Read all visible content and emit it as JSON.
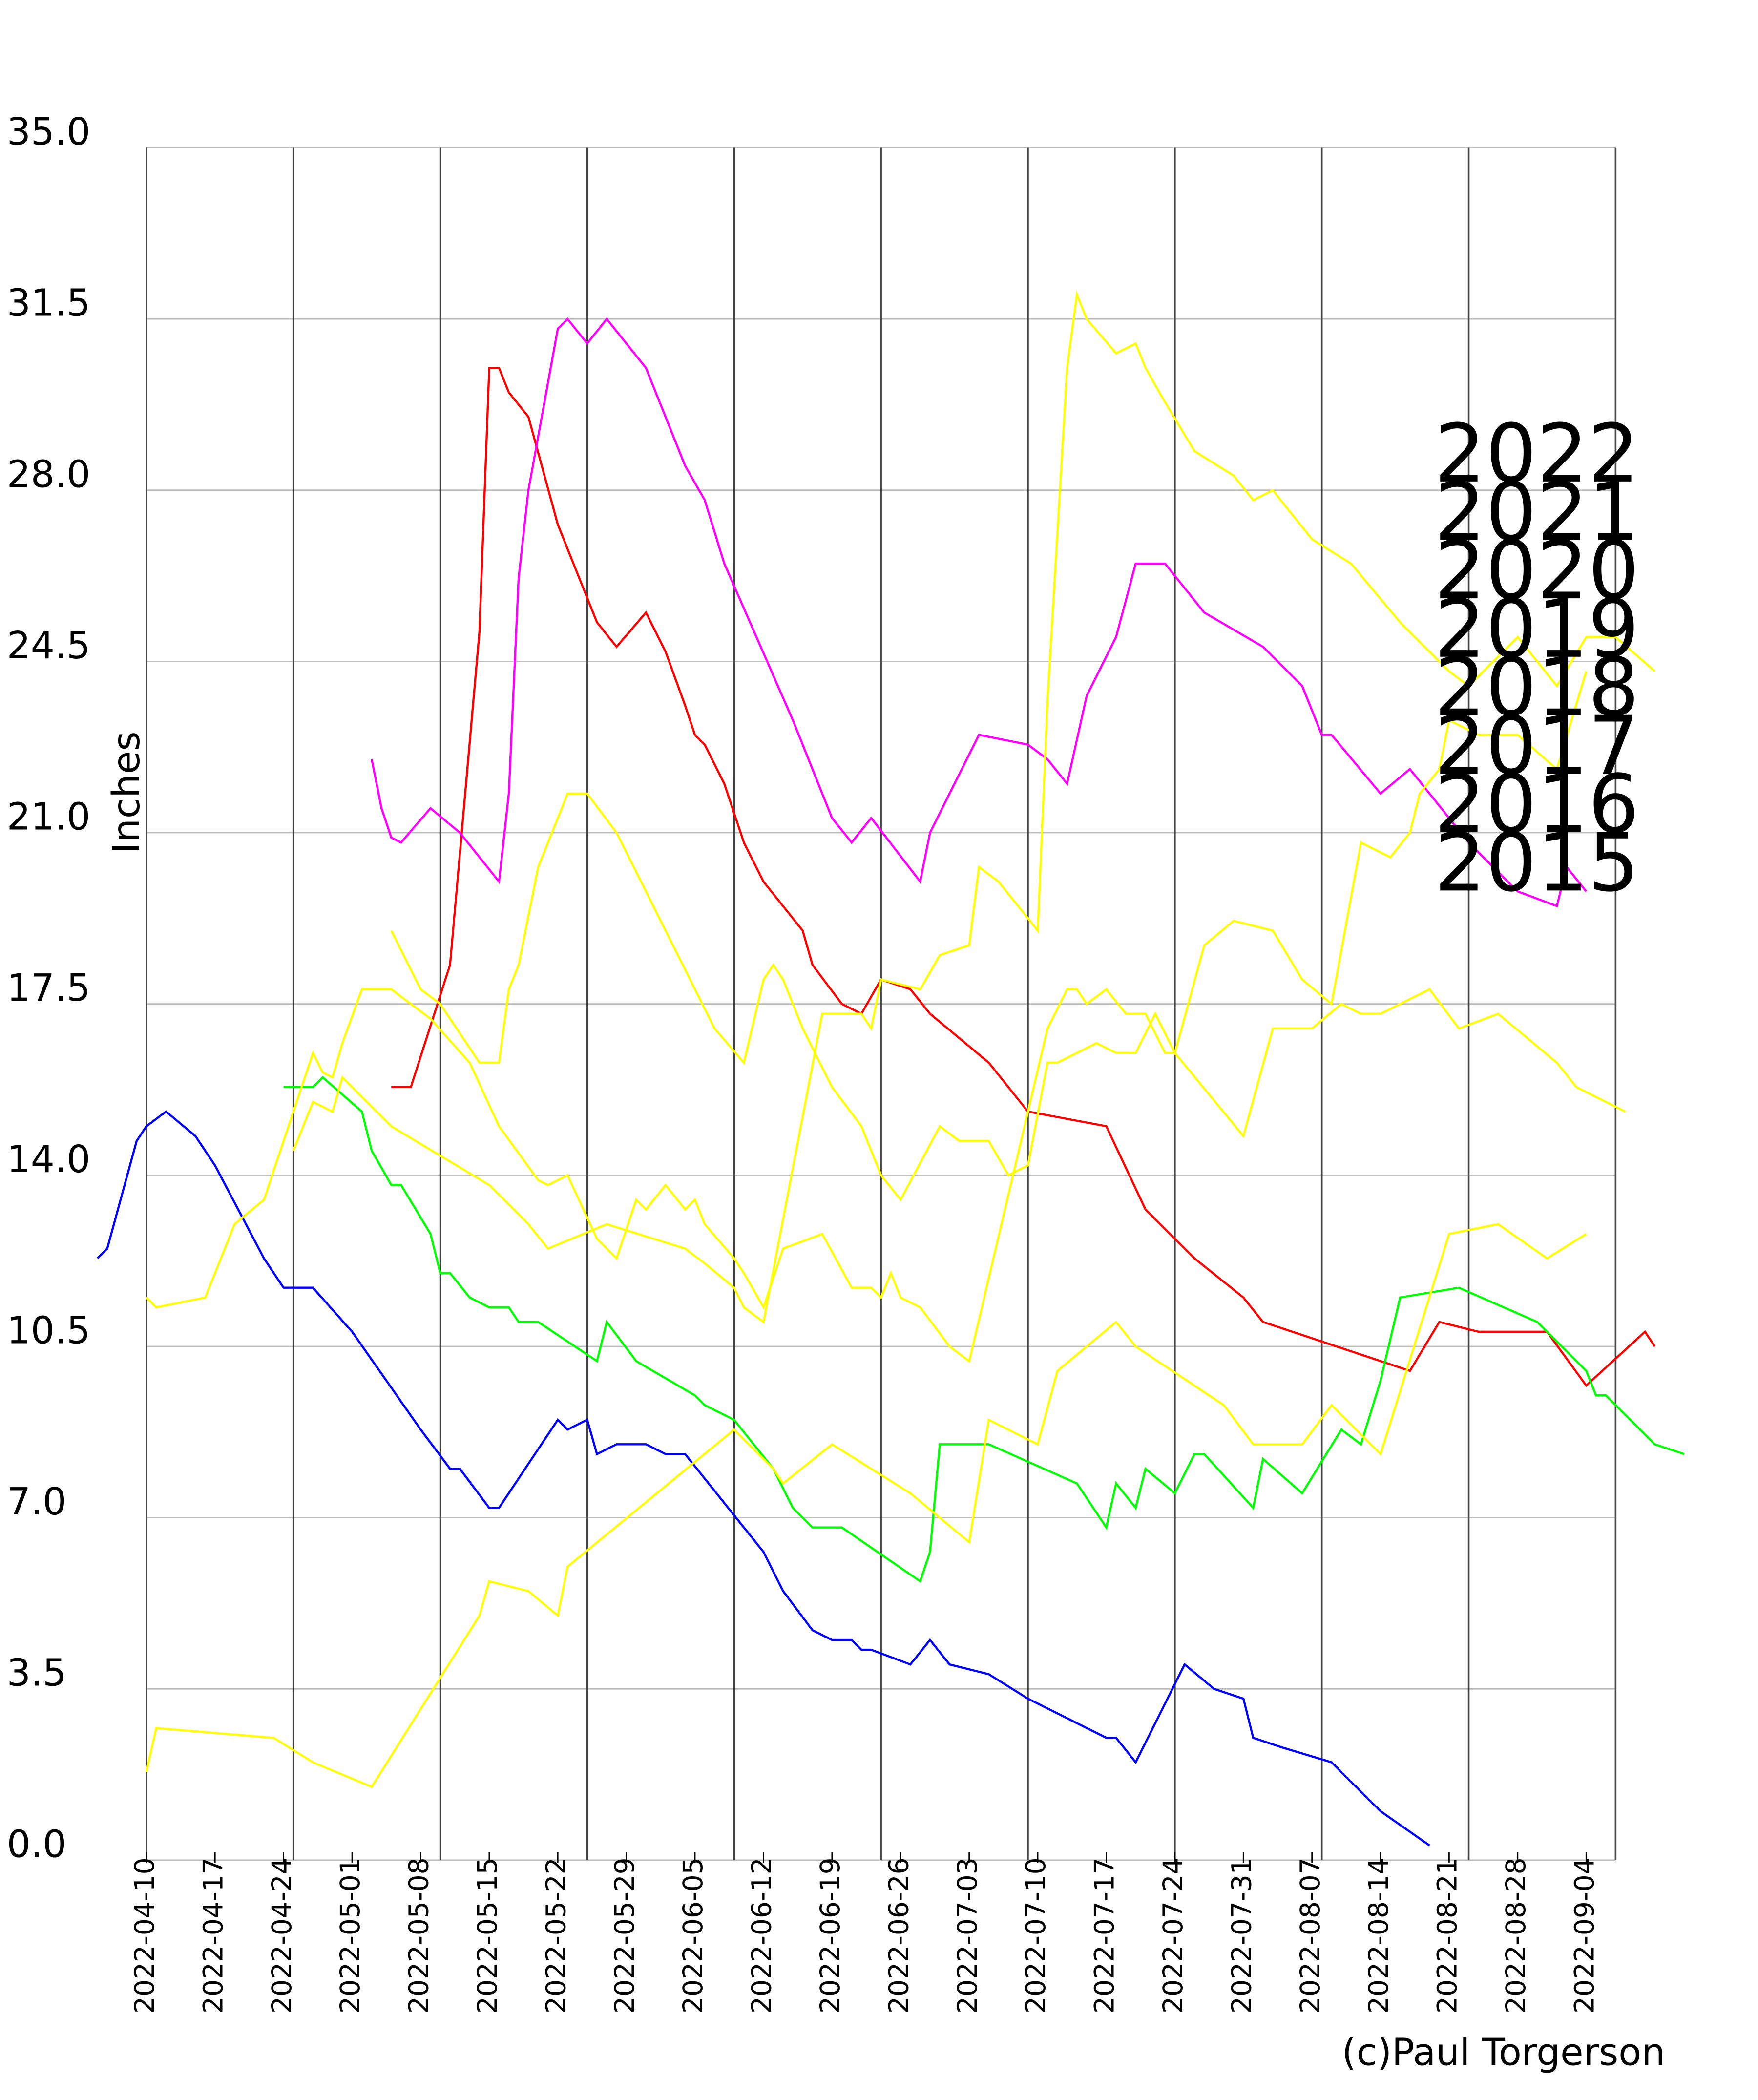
{
  "chart_data": {
    "type": "line",
    "y_label": "Inches",
    "credit": "(c)Paul Torgerson",
    "ylim": [
      0,
      35
    ],
    "yticks": [
      {
        "value": 0,
        "label": "0.0"
      },
      3.5,
      {
        "value": 7,
        "label": "7.0"
      },
      10.5,
      {
        "value": 14,
        "label": "14.0"
      },
      17.5,
      {
        "value": 21,
        "label": "21.0"
      },
      24.5,
      {
        "value": 28,
        "label": "28.0"
      },
      31.5,
      {
        "value": 35,
        "label": "35.0"
      }
    ],
    "xlim": [
      "2022-04-10",
      "2022-09-07"
    ],
    "xticks": [
      "2022-04-10",
      "2022-04-17",
      "2022-04-24",
      "2022-05-01",
      "2022-05-08",
      "2022-05-15",
      "2022-05-22",
      "2022-05-29",
      "2022-06-05",
      "2022-06-12",
      "2022-06-19",
      "2022-06-26",
      "2022-07-03",
      "2022-07-10",
      "2022-07-17",
      "2022-07-24",
      "2022-07-31",
      "2022-08-07",
      "2022-08-14",
      "2022-08-21",
      "2022-08-28",
      "2022-09-04"
    ],
    "xgrid_lines": [
      "2022-04-10",
      "2022-04-25",
      "2022-05-10",
      "2022-05-25",
      "2022-06-09",
      "2022-06-24",
      "2022-07-09",
      "2022-07-24",
      "2022-08-08",
      "2022-08-23",
      "2022-09-07"
    ],
    "grid": true,
    "series": [
      {
        "name": "2022",
        "color": "#ff0000",
        "x": [
          "2022-05-05",
          "2022-05-07",
          "2022-05-11",
          "2022-05-14",
          "2022-05-15",
          "2022-05-16",
          "2022-05-17",
          "2022-05-19",
          "2022-05-22",
          "2022-05-26",
          "2022-05-28",
          "2022-05-31",
          "2022-06-02",
          "2022-06-04",
          "2022-06-05",
          "2022-06-06",
          "2022-06-08",
          "2022-06-10",
          "2022-06-12",
          "2022-06-16",
          "2022-06-17",
          "2022-06-20",
          "2022-06-22",
          "2022-06-24",
          "2022-06-27",
          "2022-06-29",
          "2022-07-05",
          "2022-07-09",
          "2022-07-17",
          "2022-07-21",
          "2022-07-26",
          "2022-07-31",
          "2022-08-02",
          "2022-08-17",
          "2022-08-20",
          "2022-08-24",
          "2022-08-31",
          "2022-09-04",
          "2022-09-10",
          "2022-09-11"
        ],
        "values": [
          15.8,
          15.8,
          18.3,
          25.1,
          30.5,
          30.5,
          30.0,
          29.5,
          27.3,
          25.3,
          24.8,
          25.5,
          24.7,
          23.6,
          23.0,
          22.8,
          22.0,
          20.8,
          20.0,
          19.0,
          18.3,
          17.5,
          17.3,
          18.0,
          17.8,
          17.3,
          16.3,
          15.3,
          15.0,
          13.3,
          12.3,
          11.5,
          11.0,
          10.0,
          11.0,
          10.8,
          10.8,
          9.7,
          10.8,
          10.5
        ]
      },
      {
        "name": "2021",
        "color": "#0000ff",
        "x": [
          "2022-04-05",
          "2022-04-06",
          "2022-04-09",
          "2022-04-10",
          "2022-04-12",
          "2022-04-15",
          "2022-04-17",
          "2022-04-22",
          "2022-04-24",
          "2022-04-27",
          "2022-05-01",
          "2022-05-08",
          "2022-05-11",
          "2022-05-12",
          "2022-05-15",
          "2022-05-16",
          "2022-05-22",
          "2022-05-23",
          "2022-05-25",
          "2022-05-26",
          "2022-05-28",
          "2022-05-31",
          "2022-06-02",
          "2022-06-04",
          "2022-06-12",
          "2022-06-14",
          "2022-06-17",
          "2022-06-19",
          "2022-06-21",
          "2022-06-22",
          "2022-06-23",
          "2022-06-27",
          "2022-06-29",
          "2022-07-01",
          "2022-07-05",
          "2022-07-09",
          "2022-07-17",
          "2022-07-18",
          "2022-07-20",
          "2022-07-25",
          "2022-07-28",
          "2022-07-31",
          "2022-08-01",
          "2022-08-04",
          "2022-08-09",
          "2022-08-14",
          "2022-08-19"
        ],
        "values": [
          12.3,
          12.5,
          14.7,
          15.0,
          15.3,
          14.8,
          14.2,
          12.3,
          11.7,
          11.7,
          10.8,
          8.8,
          8.0,
          8.0,
          7.2,
          7.2,
          9.0,
          8.8,
          9.0,
          8.3,
          8.5,
          8.5,
          8.3,
          8.3,
          6.3,
          5.5,
          4.7,
          4.5,
          4.5,
          4.3,
          4.3,
          4.0,
          4.5,
          4.0,
          3.8,
          3.3,
          2.5,
          2.5,
          2.0,
          4.0,
          3.5,
          3.3,
          2.5,
          2.3,
          2.0,
          1.0,
          0.3
        ]
      },
      {
        "name": "2020",
        "color": "#00ff00",
        "x": [
          "2022-04-24",
          "2022-04-27",
          "2022-04-28",
          "2022-05-02",
          "2022-05-03",
          "2022-05-05",
          "2022-05-06",
          "2022-05-09",
          "2022-05-10",
          "2022-05-11",
          "2022-05-13",
          "2022-05-15",
          "2022-05-17",
          "2022-05-18",
          "2022-05-20",
          "2022-05-26",
          "2022-05-27",
          "2022-05-30",
          "2022-06-05",
          "2022-06-06",
          "2022-06-09",
          "2022-06-13",
          "2022-06-15",
          "2022-06-17",
          "2022-06-20",
          "2022-06-28",
          "2022-06-29",
          "2022-06-30",
          "2022-07-05",
          "2022-07-14",
          "2022-07-17",
          "2022-07-18",
          "2022-07-20",
          "2022-07-21",
          "2022-07-24",
          "2022-07-26",
          "2022-07-27",
          "2022-08-01",
          "2022-08-02",
          "2022-08-06",
          "2022-08-10",
          "2022-08-12",
          "2022-08-14",
          "2022-08-16",
          "2022-08-22",
          "2022-08-30",
          "2022-09-04",
          "2022-09-05",
          "2022-09-06",
          "2022-09-11",
          "2022-09-14"
        ],
        "values": [
          15.8,
          15.8,
          16.0,
          15.3,
          14.5,
          13.8,
          13.8,
          12.8,
          12.0,
          12.0,
          11.5,
          11.3,
          11.3,
          11.0,
          11.0,
          10.2,
          11.0,
          10.2,
          9.5,
          9.3,
          9.0,
          8.0,
          7.2,
          6.8,
          6.8,
          5.7,
          6.3,
          8.5,
          8.5,
          7.7,
          6.8,
          7.7,
          7.2,
          8.0,
          7.5,
          8.3,
          8.3,
          7.2,
          8.2,
          7.5,
          8.8,
          8.5,
          9.8,
          11.5,
          11.7,
          11.0,
          10.0,
          9.5,
          9.5,
          8.5,
          8.3
        ]
      },
      {
        "name": "2019",
        "color": "#ff00ff",
        "x": [
          "2022-05-03",
          "2022-05-04",
          "2022-05-05",
          "2022-05-06",
          "2022-05-09",
          "2022-05-12",
          "2022-05-16",
          "2022-05-17",
          "2022-05-18",
          "2022-05-19",
          "2022-05-22",
          "2022-05-23",
          "2022-05-25",
          "2022-05-27",
          "2022-05-31",
          "2022-06-04",
          "2022-06-06",
          "2022-06-08",
          "2022-06-15",
          "2022-06-19",
          "2022-06-21",
          "2022-06-23",
          "2022-06-28",
          "2022-06-29",
          "2022-07-04",
          "2022-07-09",
          "2022-07-11",
          "2022-07-13",
          "2022-07-15",
          "2022-07-18",
          "2022-07-20",
          "2022-07-23",
          "2022-07-27",
          "2022-08-02",
          "2022-08-06",
          "2022-08-08",
          "2022-08-09",
          "2022-08-14",
          "2022-08-17",
          "2022-08-23",
          "2022-08-28",
          "2022-09-01",
          "2022-09-02",
          "2022-09-04"
        ],
        "values": [
          22.5,
          21.5,
          20.9,
          20.8,
          21.5,
          21.0,
          20.0,
          21.8,
          26.2,
          28.0,
          31.3,
          31.5,
          31.0,
          31.5,
          30.5,
          28.5,
          27.8,
          26.5,
          23.3,
          21.3,
          20.8,
          21.3,
          20.0,
          21.0,
          23.0,
          22.8,
          22.5,
          22.0,
          23.8,
          25.0,
          26.5,
          26.5,
          25.5,
          24.8,
          24.0,
          23.0,
          23.0,
          21.8,
          22.3,
          20.8,
          19.8,
          19.5,
          20.3,
          19.8
        ]
      },
      {
        "name": "2018",
        "color": "#ffff00",
        "x": [
          "2022-05-05",
          "2022-05-08",
          "2022-05-10",
          "2022-05-14",
          "2022-05-16",
          "2022-05-17",
          "2022-05-18",
          "2022-05-20",
          "2022-05-23",
          "2022-05-25",
          "2022-05-28",
          "2022-05-31",
          "2022-06-02",
          "2022-06-05",
          "2022-06-07",
          "2022-06-10",
          "2022-06-12",
          "2022-06-13",
          "2022-06-14",
          "2022-06-16",
          "2022-06-19",
          "2022-06-22",
          "2022-06-24",
          "2022-06-26",
          "2022-06-30",
          "2022-07-02",
          "2022-07-05",
          "2022-07-07",
          "2022-07-09",
          "2022-07-11",
          "2022-07-12",
          "2022-07-14",
          "2022-07-16",
          "2022-07-18",
          "2022-07-20",
          "2022-07-22",
          "2022-07-24",
          "2022-07-27",
          "2022-07-30",
          "2022-08-03",
          "2022-08-06",
          "2022-08-09",
          "2022-08-12",
          "2022-08-15",
          "2022-08-17",
          "2022-08-18",
          "2022-08-20",
          "2022-08-21",
          "2022-08-24",
          "2022-08-28",
          "2022-09-01",
          "2022-09-04"
        ],
        "values": [
          19.0,
          17.8,
          17.5,
          16.3,
          16.3,
          17.8,
          18.3,
          20.3,
          21.8,
          21.8,
          21.0,
          19.8,
          19.0,
          17.8,
          17.0,
          16.3,
          18.0,
          18.3,
          18.0,
          17.0,
          15.8,
          15.0,
          14.0,
          13.5,
          15.0,
          14.7,
          14.7,
          14.0,
          14.2,
          16.3,
          16.3,
          16.5,
          16.7,
          16.5,
          16.5,
          17.3,
          16.5,
          18.7,
          19.2,
          19.0,
          18.0,
          17.5,
          20.8,
          20.5,
          21.0,
          21.8,
          22.3,
          23.3,
          23.0,
          23.0,
          22.3,
          24.3
        ]
      },
      {
        "name": "2017",
        "color": "#ffff00",
        "x": [
          "2022-04-10",
          "2022-04-11",
          "2022-04-16",
          "2022-04-19",
          "2022-04-22",
          "2022-04-27",
          "2022-04-28",
          "2022-04-29",
          "2022-04-30",
          "2022-05-02",
          "2022-05-05",
          "2022-05-09",
          "2022-05-13",
          "2022-05-16",
          "2022-05-20",
          "2022-05-21",
          "2022-05-23",
          "2022-05-26",
          "2022-05-28",
          "2022-05-30",
          "2022-05-31",
          "2022-06-02",
          "2022-06-04",
          "2022-06-05",
          "2022-06-06",
          "2022-06-09",
          "2022-06-10",
          "2022-06-12",
          "2022-06-14",
          "2022-06-18",
          "2022-06-21",
          "2022-06-23",
          "2022-06-24",
          "2022-06-25",
          "2022-06-26",
          "2022-06-28",
          "2022-07-01",
          "2022-07-03",
          "2022-07-11",
          "2022-07-13",
          "2022-07-14",
          "2022-07-15",
          "2022-07-17",
          "2022-07-19",
          "2022-07-21",
          "2022-07-23",
          "2022-07-24",
          "2022-07-31",
          "2022-08-03",
          "2022-08-07",
          "2022-08-10",
          "2022-08-12",
          "2022-08-14",
          "2022-08-19",
          "2022-08-22",
          "2022-08-26",
          "2022-09-01",
          "2022-09-03",
          "2022-09-08"
        ],
        "values": [
          11.5,
          11.3,
          11.5,
          13.0,
          13.5,
          16.5,
          16.1,
          16.0,
          16.7,
          17.8,
          17.8,
          17.2,
          16.3,
          15.0,
          13.9,
          13.8,
          14.0,
          12.7,
          12.3,
          13.5,
          13.3,
          13.8,
          13.3,
          13.5,
          13.0,
          12.3,
          12.0,
          11.3,
          12.5,
          12.8,
          11.7,
          11.7,
          11.5,
          12.0,
          11.5,
          11.3,
          10.5,
          10.2,
          17.0,
          17.8,
          17.8,
          17.5,
          17.8,
          17.3,
          17.3,
          16.5,
          16.5,
          14.8,
          17.0,
          17.0,
          17.5,
          17.3,
          17.3,
          17.8,
          17.0,
          17.3,
          16.3,
          15.8,
          15.3
        ]
      },
      {
        "name": "2016",
        "color": "#ffff00",
        "x": [
          "2022-04-25",
          "2022-04-27",
          "2022-04-29",
          "2022-04-30",
          "2022-05-05",
          "2022-05-15",
          "2022-05-19",
          "2022-05-21",
          "2022-05-27",
          "2022-06-04",
          "2022-06-06",
          "2022-06-09",
          "2022-06-10",
          "2022-06-12",
          "2022-06-18",
          "2022-06-22",
          "2022-06-23",
          "2022-06-24",
          "2022-06-28",
          "2022-06-30",
          "2022-07-03",
          "2022-07-04",
          "2022-07-06",
          "2022-07-10",
          "2022-07-11",
          "2022-07-13",
          "2022-07-14",
          "2022-07-15",
          "2022-07-18",
          "2022-07-20",
          "2022-07-21",
          "2022-07-23",
          "2022-07-26",
          "2022-07-30",
          "2022-08-01",
          "2022-08-03",
          "2022-08-05",
          "2022-08-07",
          "2022-08-11",
          "2022-08-16",
          "2022-08-21",
          "2022-08-23",
          "2022-08-28",
          "2022-09-01",
          "2022-09-04",
          "2022-09-07",
          "2022-09-11"
        ],
        "values": [
          14.5,
          15.5,
          15.3,
          16.0,
          15.0,
          13.8,
          13.0,
          12.5,
          13.0,
          12.5,
          12.2,
          11.7,
          11.3,
          11.0,
          17.3,
          17.3,
          17.0,
          18.0,
          17.8,
          18.5,
          18.7,
          20.3,
          20.0,
          19.0,
          23.7,
          30.5,
          32.0,
          31.5,
          30.8,
          31.0,
          30.5,
          29.8,
          28.8,
          28.3,
          27.8,
          28.0,
          27.5,
          27.0,
          26.5,
          25.3,
          24.3,
          24.0,
          25.0,
          24.0,
          25.0,
          25.0,
          24.3
        ]
      },
      {
        "name": "2015",
        "color": "#ffff00",
        "x": [
          "2022-04-10",
          "2022-04-11",
          "2022-04-23",
          "2022-04-27",
          "2022-05-03",
          "2022-05-14",
          "2022-05-15",
          "2022-05-19",
          "2022-05-22",
          "2022-05-23",
          "2022-06-09",
          "2022-06-13",
          "2022-06-14",
          "2022-06-19",
          "2022-06-27",
          "2022-07-03",
          "2022-07-05",
          "2022-07-10",
          "2022-07-12",
          "2022-07-18",
          "2022-07-20",
          "2022-07-29",
          "2022-08-01",
          "2022-08-06",
          "2022-08-09",
          "2022-08-14",
          "2022-08-21",
          "2022-08-26",
          "2022-08-31",
          "2022-09-04"
        ],
        "values": [
          1.8,
          2.7,
          2.5,
          2.0,
          1.5,
          5.0,
          5.7,
          5.5,
          5.0,
          6.0,
          8.8,
          8.0,
          7.7,
          8.5,
          7.5,
          6.5,
          9.0,
          8.5,
          10.0,
          11.0,
          10.5,
          9.3,
          8.5,
          8.5,
          9.3,
          8.3,
          12.8,
          13.0,
          12.3,
          12.8
        ]
      }
    ]
  }
}
